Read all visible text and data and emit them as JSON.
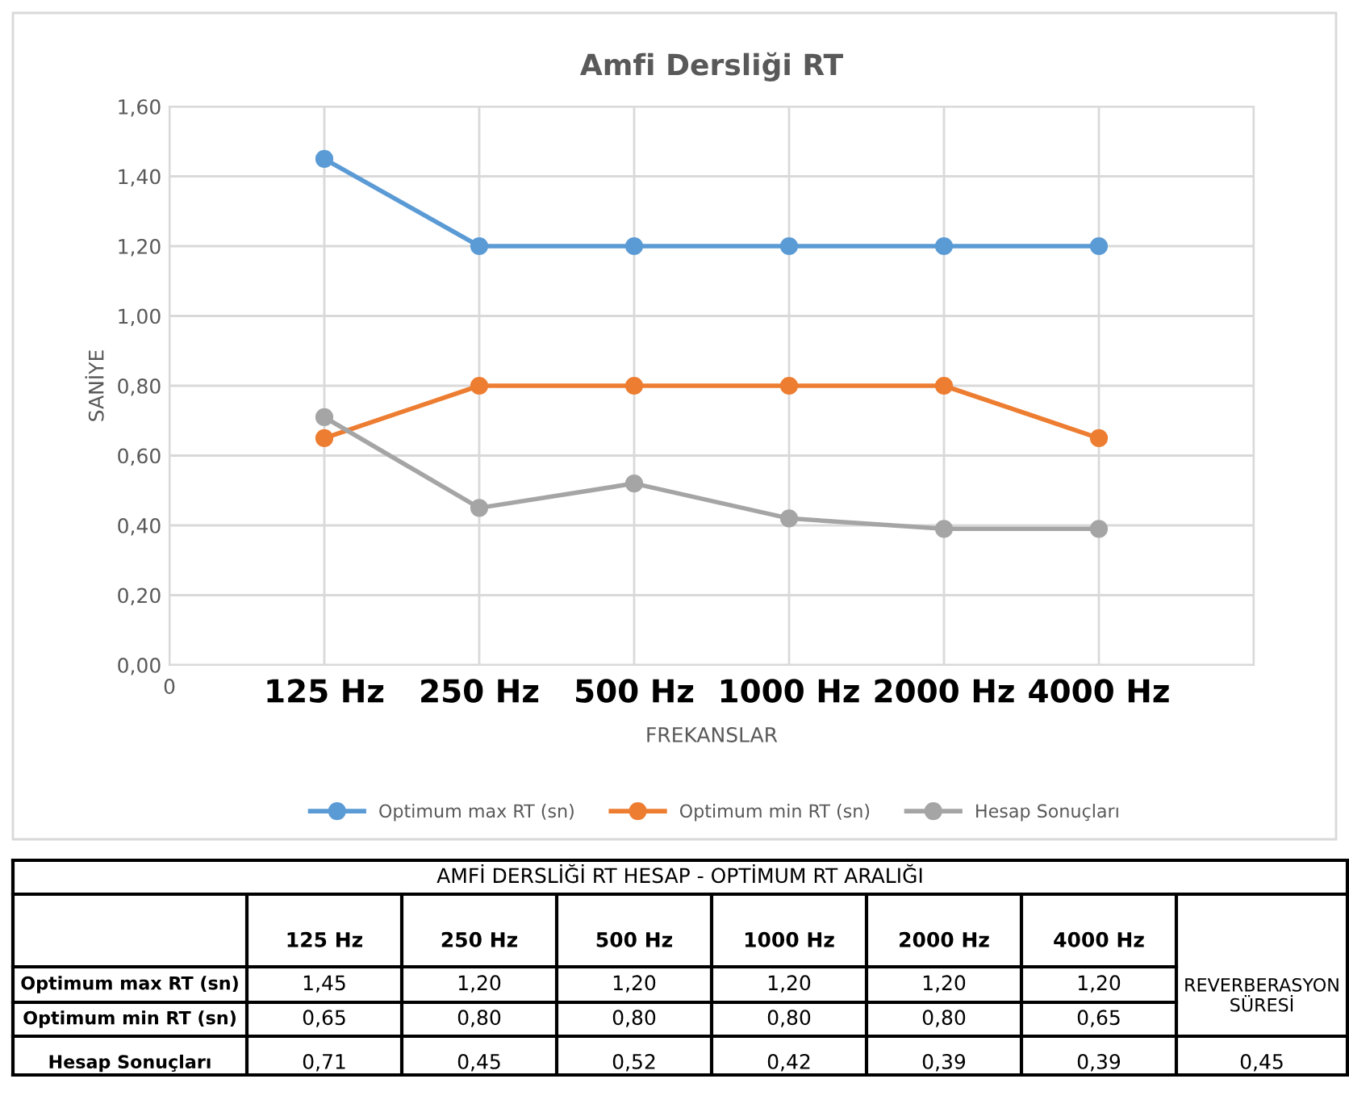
{
  "chart_data": {
    "type": "line",
    "title": "Amfi Dersliği RT",
    "xlabel": "FREKANSLAR",
    "ylabel": "SANİYE",
    "categories": [
      "0",
      "125 Hz",
      "250 Hz",
      "500 Hz",
      "1000 Hz",
      "2000 Hz",
      "4000 Hz",
      null
    ],
    "series": [
      {
        "name": "Optimum max RT (sn)",
        "color": "#5b9bd5",
        "values": [
          null,
          1.45,
          1.2,
          1.2,
          1.2,
          1.2,
          1.2,
          null
        ],
        "value_labels": [
          null,
          "1,45",
          "1,20",
          "1,20",
          "1,20",
          "1,20",
          "1,20",
          null
        ]
      },
      {
        "name": "Optimum min RT (sn)",
        "color": "#ed7d31",
        "values": [
          null,
          0.65,
          0.8,
          0.8,
          0.8,
          0.8,
          0.65,
          null
        ],
        "value_labels": [
          null,
          "0,65",
          "0,80",
          "0,80",
          "0,80",
          "0,80",
          "0,65",
          null
        ]
      },
      {
        "name": "Hesap Sonuçları",
        "color": "#a5a5a5",
        "values": [
          null,
          0.71,
          0.45,
          0.52,
          0.42,
          0.39,
          0.39,
          null
        ],
        "value_labels": [
          null,
          "0,71",
          "0,45",
          "0,52",
          "0,42",
          "0,39",
          "0,39",
          null
        ]
      }
    ],
    "ylim": [
      0,
      1.6
    ],
    "yticks": [
      {
        "value": 0,
        "label": "0,00"
      },
      {
        "value": 0.2,
        "label": "0,20"
      },
      {
        "value": 0.4,
        "label": "0,40"
      },
      {
        "value": 0.6,
        "label": "0,60"
      },
      {
        "value": 0.8,
        "label": "0,80"
      },
      {
        "value": 1.0,
        "label": "1,00"
      },
      {
        "value": 1.2,
        "label": "1,20"
      },
      {
        "value": 1.4,
        "label": "1,40"
      },
      {
        "value": 1.6,
        "label": "1,60"
      }
    ],
    "grid": true,
    "legend": "bottom",
    "marker": "circle",
    "line_style": "solid",
    "annotations": [
      "AMFİ DERSLİĞİ RT HESAP - OPTİMUM RT ARALIĞI",
      "REVERBERASYON SÜRESİ",
      "0,45"
    ]
  }
}
